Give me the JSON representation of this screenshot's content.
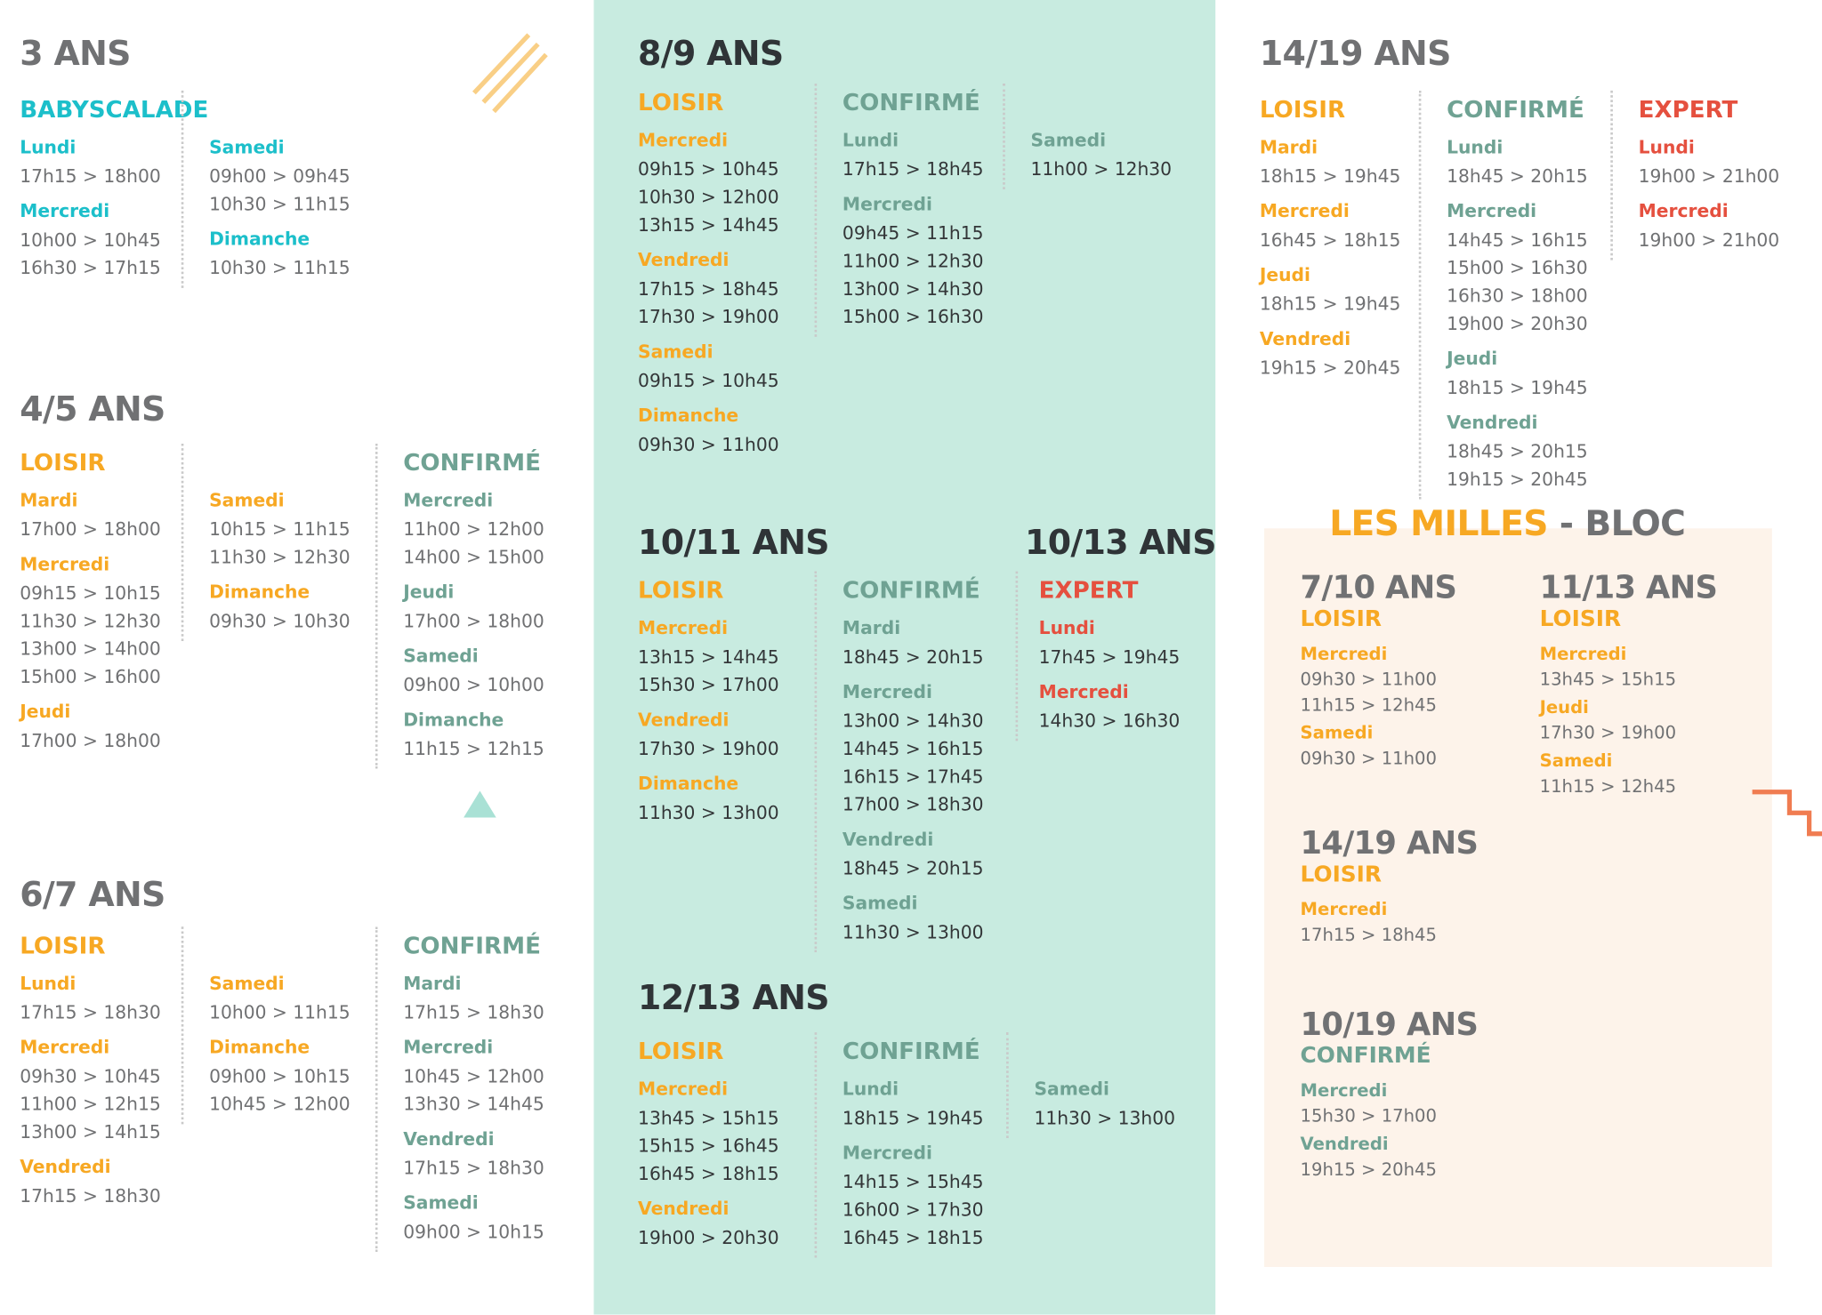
{
  "blocks": [
    {
      "title": "3 ANS",
      "groups": [
        {
          "level": "BABYSCALADE",
          "color": "#1cbfca",
          "columns": [
            [
              {
                "day": "Lundi",
                "times": [
                  "17h15 > 18h00"
                ]
              },
              {
                "day": "Mercredi",
                "times": [
                  "10h00 > 10h45",
                  "16h30 > 17h15"
                ]
              }
            ],
            [
              {
                "day": "Samedi",
                "times": [
                  "09h00 > 09h45",
                  "10h30 > 11h15"
                ]
              },
              {
                "day": "Dimanche",
                "times": [
                  "10h30 > 11h15"
                ]
              }
            ]
          ]
        }
      ]
    },
    {
      "title": "4/5 ANS",
      "groups": [
        {
          "level": "LOISIR",
          "color": "#f7a823",
          "columns": [
            [
              {
                "day": "Mardi",
                "times": [
                  "17h00 > 18h00"
                ]
              },
              {
                "day": "Mercredi",
                "times": [
                  "09h15 > 10h15",
                  "11h30 > 12h30",
                  "13h00 > 14h00",
                  "15h00 > 16h00"
                ]
              },
              {
                "day": "Jeudi",
                "times": [
                  "17h00 > 18h00"
                ]
              }
            ],
            [
              {
                "day": "Samedi",
                "times": [
                  "10h15 > 11h15",
                  "11h30 > 12h30"
                ]
              },
              {
                "day": "Dimanche",
                "times": [
                  "09h30 > 10h30"
                ]
              }
            ]
          ]
        },
        {
          "level": "CONFIRMÉ",
          "color": "#6fa293",
          "columns": [
            [
              {
                "day": "Mercredi",
                "times": [
                  "11h00 > 12h00",
                  "14h00 > 15h00"
                ]
              },
              {
                "day": "Jeudi",
                "times": [
                  "17h00 > 18h00"
                ]
              },
              {
                "day": "Samedi",
                "times": [
                  "09h00 > 10h00"
                ]
              },
              {
                "day": "Dimanche",
                "times": [
                  "11h15 > 12h15"
                ]
              }
            ]
          ]
        }
      ]
    },
    {
      "title": "6/7 ANS",
      "groups": [
        {
          "level": "LOISIR",
          "color": "#f7a823",
          "columns": [
            [
              {
                "day": "Lundi",
                "times": [
                  "17h15 > 18h30"
                ]
              },
              {
                "day": "Mercredi",
                "times": [
                  "09h30 > 10h45",
                  "11h00 > 12h15",
                  "13h00 > 14h15"
                ]
              },
              {
                "day": "Vendredi",
                "times": [
                  "17h15 > 18h30"
                ]
              }
            ],
            [
              {
                "day": "Samedi",
                "times": [
                  "10h00 > 11h15"
                ]
              },
              {
                "day": "Dimanche",
                "times": [
                  "09h00 > 10h15",
                  "10h45 > 12h00"
                ]
              }
            ]
          ]
        },
        {
          "level": "CONFIRMÉ",
          "color": "#6fa293",
          "columns": [
            [
              {
                "day": "Mardi",
                "times": [
                  "17h15 > 18h30"
                ]
              },
              {
                "day": "Mercredi",
                "times": [
                  "10h45 > 12h00",
                  "13h30 > 14h45"
                ]
              },
              {
                "day": "Vendredi",
                "times": [
                  "17h15 > 18h30"
                ]
              },
              {
                "day": "Samedi",
                "times": [
                  "09h00 > 10h15"
                ]
              }
            ]
          ]
        }
      ]
    },
    {
      "title": "8/9 ANS",
      "groups": [
        {
          "level": "LOISIR",
          "color": "#f7a823",
          "columns": [
            [
              {
                "day": "Mercredi",
                "times": [
                  "09h15 > 10h45",
                  "10h30 > 12h00",
                  "13h15 > 14h45"
                ]
              },
              {
                "day": "Vendredi",
                "times": [
                  "17h15 > 18h45",
                  "17h30 > 19h00"
                ]
              },
              {
                "day": "Samedi",
                "times": [
                  "09h15 > 10h45"
                ]
              },
              {
                "day": "Dimanche",
                "times": [
                  "09h30 > 11h00"
                ]
              }
            ]
          ]
        },
        {
          "level": "CONFIRMÉ",
          "color": "#6fa293",
          "columns": [
            [
              {
                "day": "Lundi",
                "times": [
                  "17h15 > 18h45"
                ]
              },
              {
                "day": "Mercredi",
                "times": [
                  "09h45 > 11h15",
                  "11h00 > 12h30",
                  "13h00 > 14h30",
                  "15h00 > 16h30"
                ]
              }
            ],
            [
              {
                "day": "Samedi",
                "times": [
                  "11h00 > 12h30"
                ]
              }
            ]
          ]
        }
      ]
    },
    {
      "title": "10/11 ANS",
      "groups": [
        {
          "level": "LOISIR",
          "color": "#f7a823",
          "columns": [
            [
              {
                "day": "Mercredi",
                "times": [
                  "13h15 > 14h45",
                  "15h30 > 17h00"
                ]
              },
              {
                "day": "Vendredi",
                "times": [
                  "17h30 > 19h00"
                ]
              },
              {
                "day": "Dimanche",
                "times": [
                  "11h30 > 13h00"
                ]
              }
            ]
          ]
        },
        {
          "level": "CONFIRMÉ",
          "color": "#6fa293",
          "columns": [
            [
              {
                "day": "Mardi",
                "times": [
                  "18h45 > 20h15"
                ]
              },
              {
                "day": "Mercredi",
                "times": [
                  "13h00 > 14h30",
                  "14h45 > 16h15",
                  "16h15 > 17h45",
                  "17h00 > 18h30"
                ]
              },
              {
                "day": "Vendredi",
                "times": [
                  "18h45 > 20h15"
                ]
              },
              {
                "day": "Samedi",
                "times": [
                  "11h30 > 13h00"
                ]
              }
            ]
          ]
        }
      ]
    },
    {
      "title": "10/13 ANS",
      "groups": [
        {
          "level": "EXPERT",
          "color": "#e5503f",
          "columns": [
            [
              {
                "day": "Lundi",
                "times": [
                  "17h45 > 19h45"
                ]
              },
              {
                "day": "Mercredi",
                "times": [
                  "14h30 > 16h30"
                ]
              }
            ]
          ]
        }
      ]
    },
    {
      "title": "12/13 ANS",
      "groups": [
        {
          "level": "LOISIR",
          "color": "#f7a823",
          "columns": [
            [
              {
                "day": "Mercredi",
                "times": [
                  "13h45 > 15h15",
                  "15h15 > 16h45",
                  "16h45 > 18h15"
                ]
              },
              {
                "day": "Vendredi",
                "times": [
                  "19h00 > 20h30"
                ]
              }
            ]
          ]
        },
        {
          "level": "CONFIRMÉ",
          "color": "#6fa293",
          "columns": [
            [
              {
                "day": "Lundi",
                "times": [
                  "18h15 > 19h45"
                ]
              },
              {
                "day": "Mercredi",
                "times": [
                  "14h15 > 15h45",
                  "16h00 > 17h30",
                  "16h45 > 18h15"
                ]
              }
            ],
            [
              {
                "day": "Samedi",
                "times": [
                  "11h30 > 13h00"
                ]
              }
            ]
          ]
        }
      ]
    },
    {
      "title": "14/19 ANS",
      "groups": [
        {
          "level": "LOISIR",
          "color": "#f7a823",
          "columns": [
            [
              {
                "day": "Mardi",
                "times": [
                  "18h15 > 19h45"
                ]
              },
              {
                "day": "Mercredi",
                "times": [
                  "16h45 > 18h15"
                ]
              },
              {
                "day": "Jeudi",
                "times": [
                  "18h15 > 19h45"
                ]
              },
              {
                "day": "Vendredi",
                "times": [
                  "19h15 > 20h45"
                ]
              }
            ]
          ]
        },
        {
          "level": "CONFIRMÉ",
          "color": "#6fa293",
          "columns": [
            [
              {
                "day": "Lundi",
                "times": [
                  "18h45 > 20h15"
                ]
              },
              {
                "day": "Mercredi",
                "times": [
                  "14h45 > 16h15",
                  "15h00 > 16h30",
                  "16h30 > 18h00",
                  "19h00 > 20h30"
                ]
              },
              {
                "day": "Jeudi",
                "times": [
                  "18h15 > 19h45"
                ]
              },
              {
                "day": "Vendredi",
                "times": [
                  "18h45 > 20h15",
                  "19h15 > 20h45"
                ]
              }
            ]
          ]
        },
        {
          "level": "EXPERT",
          "color": "#e5503f",
          "columns": [
            [
              {
                "day": "Lundi",
                "times": [
                  "19h00 > 21h00"
                ]
              },
              {
                "day": "Mercredi",
                "times": [
                  "19h00 > 21h00"
                ]
              }
            ]
          ]
        }
      ]
    }
  ],
  "bloc": {
    "title": "LES MILLES",
    "suffix": "- BLOC",
    "blocks": [
      {
        "title": "7/10 ANS",
        "groups": [
          {
            "level": "LOISIR",
            "color": "#f7a823",
            "columns": [
              [
                {
                  "day": "Mercredi",
                  "times": [
                    "09h30 > 11h00",
                    "11h15 > 12h45"
                  ]
                },
                {
                  "day": "Samedi",
                  "times": [
                    "09h30 > 11h00"
                  ]
                }
              ]
            ]
          }
        ]
      },
      {
        "title": "11/13 ANS",
        "groups": [
          {
            "level": "LOISIR",
            "color": "#f7a823",
            "columns": [
              [
                {
                  "day": "Mercredi",
                  "times": [
                    "13h45 > 15h15"
                  ]
                },
                {
                  "day": "Jeudi",
                  "times": [
                    "17h30 > 19h00"
                  ]
                },
                {
                  "day": "Samedi",
                  "times": [
                    "11h15 > 12h45"
                  ]
                }
              ]
            ]
          }
        ]
      },
      {
        "title": "14/19 ANS",
        "groups": [
          {
            "level": "LOISIR",
            "color": "#f7a823",
            "columns": [
              [
                {
                  "day": "Mercredi",
                  "times": [
                    "17h15 > 18h45"
                  ]
                }
              ]
            ]
          }
        ]
      },
      {
        "title": "10/19 ANS",
        "groups": [
          {
            "level": "CONFIRMÉ",
            "color": "#6fa293",
            "columns": [
              [
                {
                  "day": "Mercredi",
                  "times": [
                    "15h30 > 17h00"
                  ]
                },
                {
                  "day": "Vendredi",
                  "times": [
                    "19h15 > 20h45"
                  ]
                }
              ]
            ]
          }
        ]
      }
    ]
  }
}
